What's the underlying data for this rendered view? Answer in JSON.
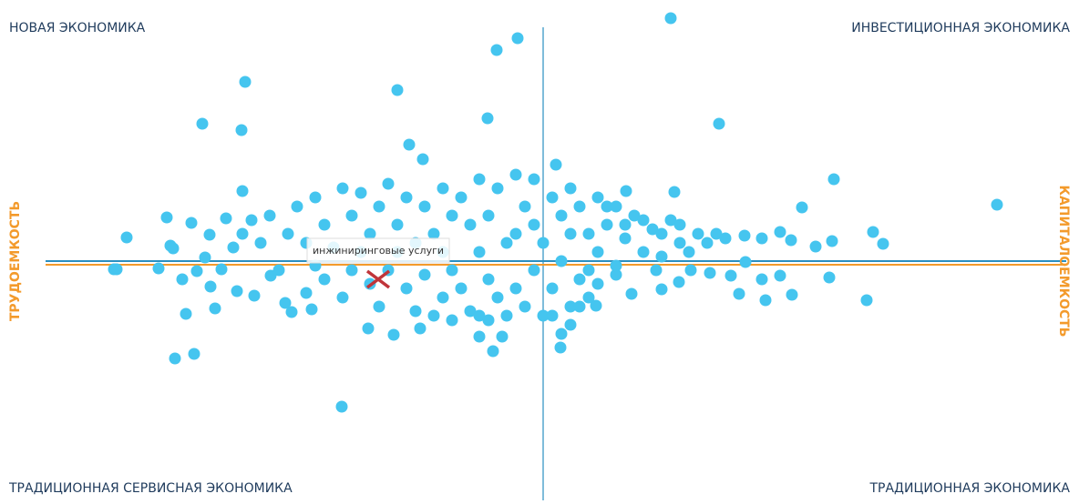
{
  "chart_data": {
    "type": "scatter",
    "color": "#45c5ef",
    "quadrants": {
      "top_left": "НОВАЯ ЭКОНОМИКА",
      "top_right": "ИНВЕСТИЦИОННАЯ ЭКОНОМИКА",
      "bottom_left": "ТРАДИЦИОННАЯ СЕРВИСНАЯ ЭКОНОМИКА",
      "bottom_right": "ТРАДИЦИОННАЯ ЭКОНОМИКА"
    },
    "left_label": "ТРУДОЕМКОСТЬ",
    "right_label": "КАПИТАЛОЕМКОСТЬ",
    "xlim": [
      -54.6,
      57.4
    ],
    "ylim": [
      -26.3,
      28.7
    ],
    "highlight": {
      "label": "инжиниринговые услуги",
      "x": -18.1,
      "y": -2.0,
      "color": "#c0353a"
    },
    "x": [
      14.0,
      -2.8,
      -5.1,
      -32.7,
      -16.0,
      -37.4,
      -33.1,
      -6.1,
      19.3,
      -14.7,
      -13.2,
      1.4,
      31.9,
      49.8,
      28.4,
      -45.7,
      -41.3,
      -33.0,
      9.1,
      14.4,
      36.2,
      37.3,
      31.7,
      29.9,
      26.0,
      27.2,
      24.0,
      22.1,
      -47.1,
      -46.8,
      -42.2,
      -39.6,
      -38.0,
      -36.5,
      -36.0,
      -39.2,
      -40.4,
      -38.3,
      -22.1,
      1.9,
      -5.5,
      -7.0,
      -4.5,
      -16.4,
      -19.2,
      -13.5,
      5.8,
      9.7,
      13.0,
      14.9,
      18.3,
      20.6,
      21.5,
      24.0,
      24.4,
      26.0,
      27.3,
      31.4,
      35.5,
      22.2,
      16.2,
      12.4,
      8.0,
      -40.9,
      -40.6,
      -35.3,
      -33.6,
      -31.7,
      -29.9,
      -28.3,
      -27.6,
      -25.4,
      -38.6,
      -36.6,
      -34.8,
      -37.1,
      -27,
      -25,
      -24,
      -22,
      -21,
      -20,
      -19,
      -18,
      -17,
      -16,
      -15,
      -14,
      -13,
      -12,
      -11,
      -10,
      -26,
      -23,
      -21,
      -19,
      -17,
      -15,
      -13,
      -11,
      -24,
      -28,
      -30,
      -29,
      -26,
      -22,
      -18,
      -14,
      -12,
      -16,
      -20,
      -25,
      -31,
      -32,
      -33,
      -34,
      -9,
      -8,
      -7,
      -6,
      -5,
      -4,
      -3,
      -2,
      -1,
      0,
      1,
      2,
      3,
      -9,
      -8,
      -7,
      -6,
      -5,
      -4,
      -3,
      -2,
      -1,
      0,
      1,
      2,
      3,
      -10,
      -11,
      -7,
      -3,
      -1,
      -6,
      -10,
      4,
      5,
      6,
      7,
      8,
      9,
      10,
      11,
      12,
      13,
      14,
      15,
      16,
      17,
      4,
      5,
      6,
      3,
      2,
      1,
      7,
      9,
      11,
      13,
      15,
      18,
      19,
      20,
      6,
      8,
      4,
      3,
      5
    ],
    "y": [
      26.7,
      24.5,
      23.2,
      19.7,
      18.8,
      15.1,
      14.4,
      15.7,
      15.1,
      12.8,
      11.2,
      10.6,
      9.0,
      6.2,
      5.9,
      2.6,
      4.8,
      7.7,
      7.7,
      7.6,
      3.2,
      1.9,
      2.2,
      1.6,
      3.2,
      2.3,
      2.5,
      2.8,
      -0.9,
      -0.9,
      -0.8,
      -2.0,
      -1.1,
      -2.8,
      -5.2,
      -5.8,
      -10.7,
      -10.2,
      -16.0,
      -9.5,
      -9.9,
      -8.3,
      -8.3,
      -8.1,
      -7.4,
      -7.4,
      -4.9,
      -3.6,
      -3.1,
      -2.3,
      -1.3,
      -1.6,
      -3.6,
      -2.0,
      -4.3,
      -1.6,
      -3.7,
      -1.8,
      -4.3,
      -0.1,
      -1.0,
      -1.0,
      -1.5,
      1.7,
      1.4,
      -0.9,
      -3.3,
      -3.8,
      -1.6,
      -4.6,
      -5.6,
      -5.3,
      4.2,
      2.9,
      4.7,
      0.4,
      6,
      7,
      4,
      8,
      5,
      7.5,
      3,
      6,
      8.5,
      4,
      7,
      2,
      6,
      3,
      8,
      5,
      2,
      1.5,
      -1,
      -2.5,
      -1,
      -3,
      -1.5,
      -4,
      -2,
      3,
      5,
      -1,
      -3.5,
      -4,
      -5,
      -5.5,
      -6,
      1,
      1,
      -0.5,
      2,
      4.5,
      3,
      1.5,
      7,
      4,
      1,
      -2,
      -4,
      -6,
      3,
      6,
      -1,
      2,
      -3,
      5,
      -5,
      -3,
      -5.5,
      -6,
      5,
      8,
      2,
      -3,
      -5,
      4,
      -6,
      7,
      0,
      3,
      -1,
      1,
      9,
      9.5,
      9,
      -6.5,
      -6.5,
      6,
      3,
      1,
      4,
      -0.5,
      2.5,
      5,
      1,
      3.5,
      0.5,
      4.5,
      2,
      1,
      3,
      -2,
      -4,
      -2.5,
      -7,
      -8,
      -6,
      6,
      4,
      4.5,
      3,
      4,
      2,
      3,
      2.5,
      7,
      6,
      -5,
      8,
      -1
    ]
  }
}
